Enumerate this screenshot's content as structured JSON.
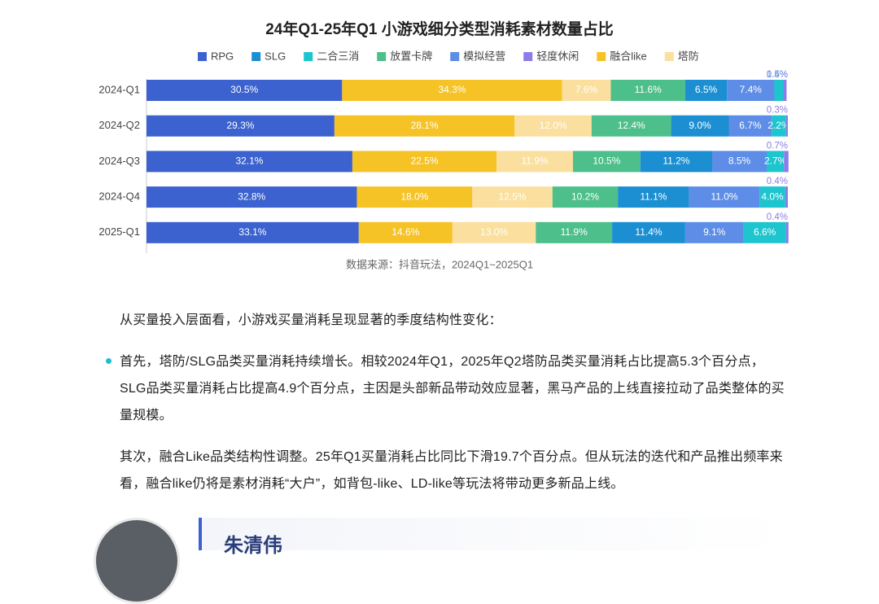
{
  "chart_data": {
    "type": "bar",
    "orientation": "horizontal",
    "stacked": true,
    "title": "24年Q1-25年Q1 小游戏细分类型消耗素材数量占比",
    "categories": [
      "2024-Q1",
      "2024-Q2",
      "2024-Q3",
      "2024-Q4",
      "2025-Q1"
    ],
    "xlim": [
      0,
      100
    ],
    "stack_order": [
      0,
      6,
      7,
      3,
      1,
      4,
      2,
      5
    ],
    "series": [
      {
        "name": "RPG",
        "color": "#3b62cf",
        "values": [
          30.5,
          29.3,
          32.1,
          32.8,
          33.1
        ],
        "value_labels": [
          "30.5%",
          "29.3%",
          "32.1%",
          "32.8%",
          "33.1%"
        ]
      },
      {
        "name": "SLG",
        "color": "#1b8fd2",
        "values": [
          6.5,
          9.0,
          11.2,
          11.1,
          11.4
        ],
        "value_labels": [
          "6.5%",
          "9.0%",
          "11.2%",
          "11.1%",
          "11.4%"
        ]
      },
      {
        "name": "二合三消",
        "color": "#1dc5cf",
        "values": [
          1.4,
          2.2,
          2.7,
          4.0,
          6.6
        ],
        "value_labels": [
          "1.4%",
          "2.2%",
          "2.7%",
          "4.0%",
          "6.6%"
        ]
      },
      {
        "name": "放置卡牌",
        "color": "#4dbf8a",
        "values": [
          11.6,
          12.4,
          10.5,
          10.2,
          11.9
        ],
        "value_labels": [
          "11.6%",
          "12.4%",
          "10.5%",
          "10.2%",
          "11.9%"
        ]
      },
      {
        "name": "模拟经营",
        "color": "#5d8de6",
        "values": [
          7.4,
          6.7,
          8.5,
          11.0,
          9.1
        ],
        "value_labels": [
          "7.4%",
          "6.7%",
          "8.5%",
          "11.0%",
          "9.1%"
        ]
      },
      {
        "name": "轻度休闲",
        "color": "#8c7ce8",
        "values": [
          0.5,
          0.3,
          0.7,
          0.4,
          0.4
        ],
        "value_labels": [
          "0.5%",
          "0.3%",
          "0.7%",
          "0.4%",
          "0.4%"
        ]
      },
      {
        "name": "融合like",
        "color": "#f6c326",
        "values": [
          34.3,
          28.1,
          22.5,
          18.0,
          14.6
        ],
        "value_labels": [
          "34.3%",
          "28.1%",
          "22.5%",
          "18.0%",
          "14.6%"
        ]
      },
      {
        "name": "塔防",
        "color": "#fbdf9e",
        "values": [
          7.6,
          12.0,
          11.9,
          12.5,
          13.0
        ],
        "value_labels": [
          "7.6%",
          "12.0%",
          "11.9%",
          "12.5%",
          "13.0%"
        ]
      }
    ],
    "source": "数据来源：抖音玩法，2024Q1~2025Q1"
  },
  "article": {
    "intro": "从买量投入层面看，小游戏买量消耗呈现显著的季度结构性变化：",
    "bullet": "首先，塔防/SLG品类买量消耗持续增长。相较2024年Q1，2025年Q2塔防品类买量消耗占比提高5.3个百分点，SLG品类买量消耗占比提高4.9个百分点，主因是头部新品带动效应显著，黑马产品的上线直接拉动了品类整体的买量规模。",
    "paragraph": "其次，融合Like品类结构性调整。25年Q1买量消耗占比同比下滑19.7个百分点。但从玩法的迭代和产品推出频率来看，融合like仍将是素材消耗“大户”，如背包-like、LD-like等玩法将带动更多新品上线。",
    "author": "朱清伟"
  }
}
